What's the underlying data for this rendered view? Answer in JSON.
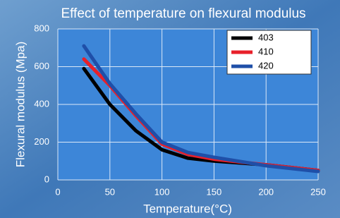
{
  "chart_data": {
    "type": "line",
    "title": "Effect of temperature on flexural modulus",
    "x_label": "Temperature(°C)",
    "y_label": "Flexural modulus (Mpa)",
    "xlim": [
      0,
      250
    ],
    "xticks": [
      0,
      50,
      100,
      150,
      200,
      250
    ],
    "ylim": [
      0,
      800
    ],
    "yticks": [
      0,
      200,
      400,
      600,
      800
    ],
    "grid": true,
    "legend": "top-right",
    "series": [
      {
        "name": "403",
        "color": "#000000",
        "x": [
          25,
          50,
          75,
          100,
          125,
          150,
          200,
          250
        ],
        "values": [
          590,
          400,
          260,
          160,
          115,
          100,
          80,
          50
        ]
      },
      {
        "name": "410",
        "color": "#e8202a",
        "x": [
          25,
          50,
          75,
          100,
          125,
          150,
          200,
          250
        ],
        "values": [
          640,
          500,
          340,
          190,
          135,
          110,
          80,
          50
        ]
      },
      {
        "name": "420",
        "color": "#1f4fa8",
        "x": [
          25,
          50,
          75,
          100,
          125,
          150,
          200,
          250
        ],
        "values": [
          710,
          510,
          350,
          200,
          145,
          120,
          75,
          45
        ]
      }
    ]
  }
}
